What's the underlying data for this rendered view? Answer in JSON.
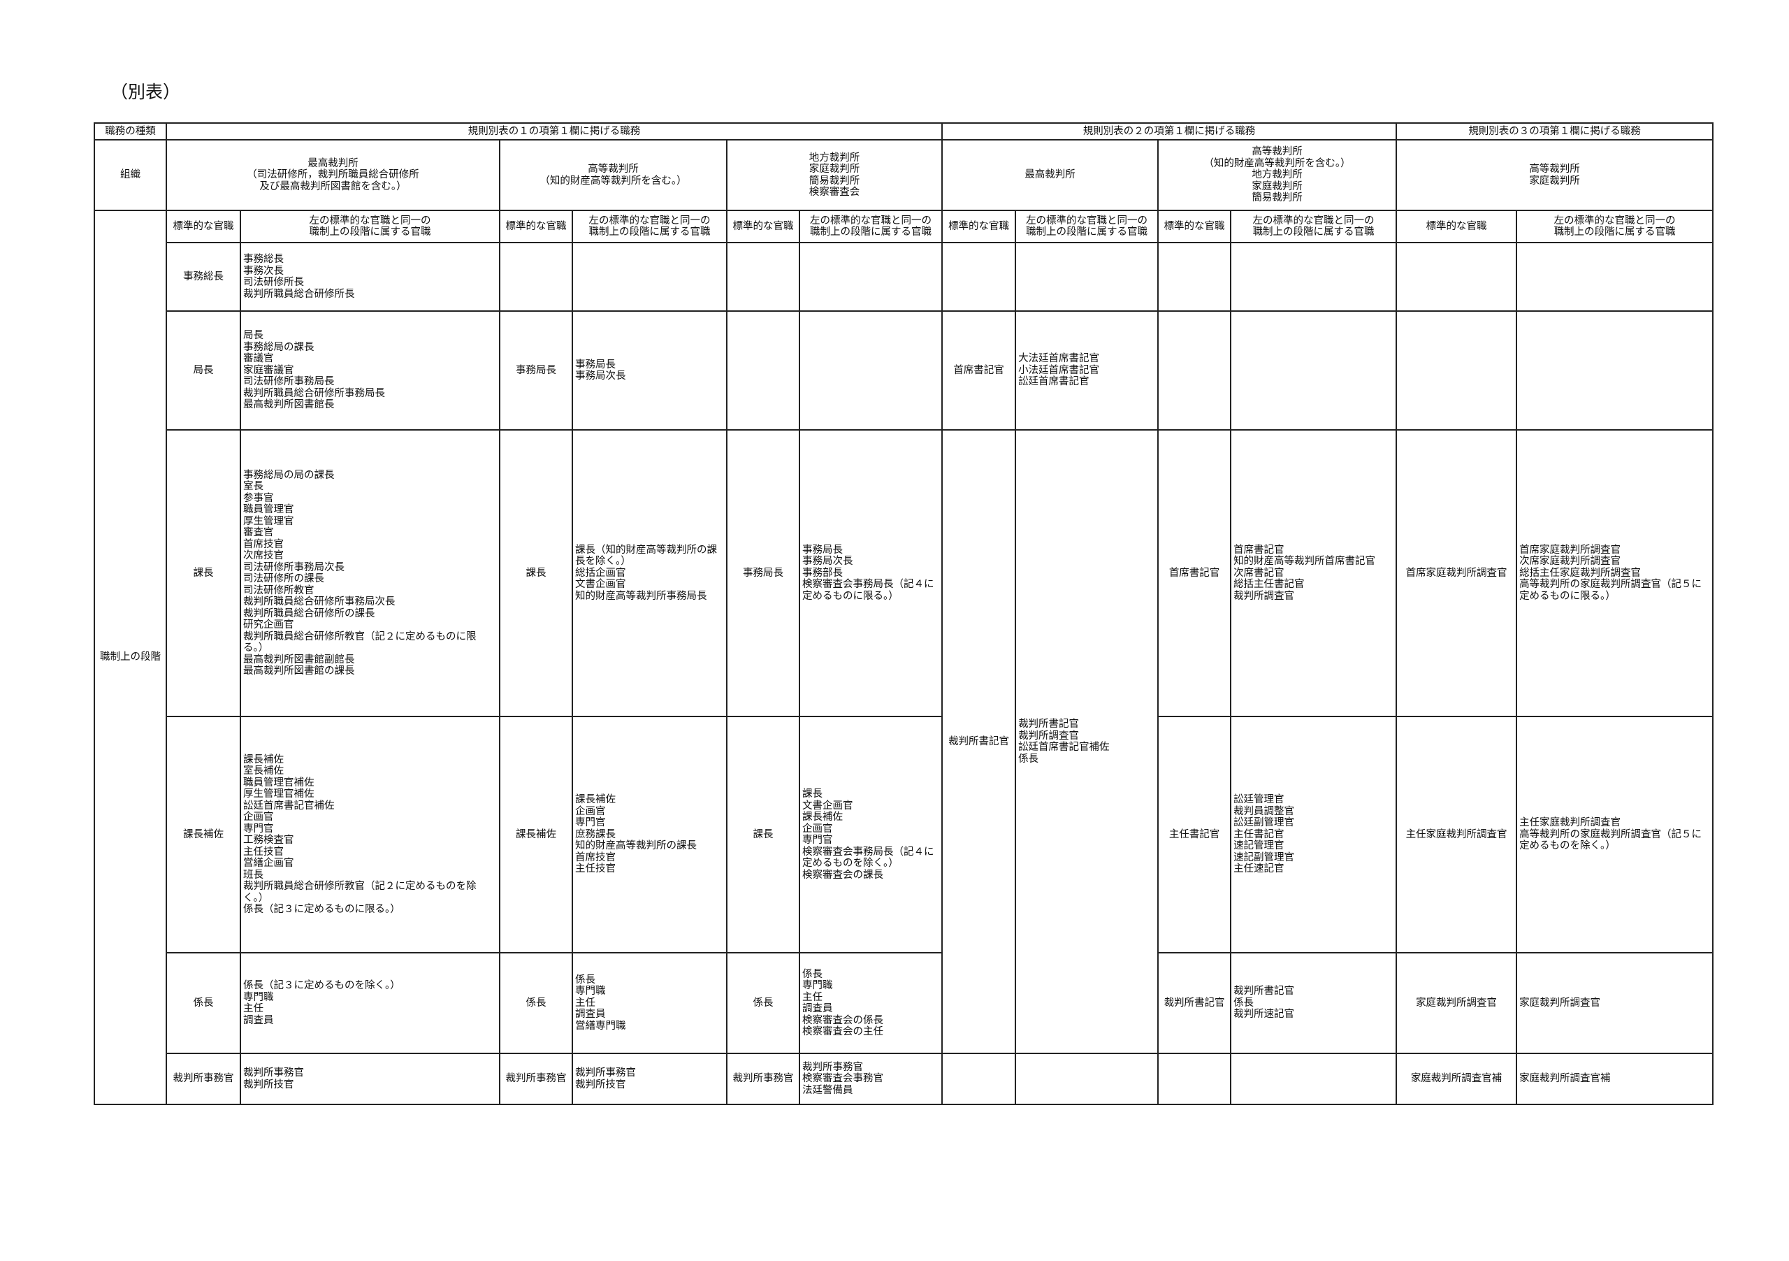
{
  "title": "（別表）",
  "header": {
    "kind_label": "職務の種類",
    "group1": "規則別表の１の項第１欄に掲げる職務",
    "group2": "規則別表の２の項第１欄に掲げる職務",
    "group3": "規則別表の３の項第１欄に掲げる職務",
    "org_label": "組織",
    "level_label": "職制上の段階",
    "standard": "標準的な官職",
    "same_level": "左の標準的な官職と同一の\n職制上の段階に属する官職"
  },
  "orgs": [
    "最高裁判所\n（司法研修所，裁判所職員総合研修所\n及び最高裁判所図書館を含む。）",
    "高等裁判所\n（知的財産高等裁判所を含む。）",
    "地方裁判所\n家庭裁判所\n簡易裁判所\n検察審査会",
    "最高裁判所",
    "高等裁判所\n（知的財産高等裁判所を含む。）\n地方裁判所\n家庭裁判所\n簡易裁判所",
    "高等裁判所\n家庭裁判所"
  ],
  "rows": [
    {
      "cells": [
        {
          "std": "事務総長",
          "list": "事務総長\n事務次長\n司法研修所長\n裁判所職員総合研修所長"
        },
        {
          "std": "",
          "list": ""
        },
        {
          "std": "",
          "list": ""
        },
        {
          "std": "",
          "list": ""
        },
        {
          "std": "",
          "list": ""
        },
        {
          "std": "",
          "list": ""
        }
      ]
    },
    {
      "cells": [
        {
          "std": "局長",
          "list": "局長\n事務総局の課長\n審議官\n家庭審議官\n司法研修所事務局長\n裁判所職員総合研修所事務局長\n最高裁判所図書館長"
        },
        {
          "std": "事務局長",
          "list": "事務局長\n事務局次長"
        },
        {
          "std": "",
          "list": ""
        },
        {
          "std": "首席書記官",
          "list": "大法廷首席書記官\n小法廷首席書記官\n訟廷首席書記官"
        },
        {
          "std": "",
          "list": ""
        },
        {
          "std": "",
          "list": ""
        }
      ]
    },
    {
      "cells": [
        {
          "std": "課長",
          "list": "事務総局の局の課長\n室長\n参事官\n職員管理官\n厚生管理官\n審査官\n首席技官\n次席技官\n司法研修所事務局次長\n司法研修所の課長\n司法研修所教官\n裁判所職員総合研修所事務局次長\n裁判所職員総合研修所の課長\n研究企画官\n裁判所職員総合研修所教官（記２に定めるものに限る。）\n最高裁判所図書館副館長\n最高裁判所図書館の課長"
        },
        {
          "std": "課長",
          "list": "課長（知的財産高等裁判所の課長を除く。）\n総括企画官\n文書企画官\n知的財産高等裁判所事務局長"
        },
        {
          "std": "事務局長",
          "list": "事務局長\n事務局次長\n事務部長\n検察審査会事務局長（記４に定めるものに限る。）"
        },
        {
          "std": "裁判所書記官",
          "list": "裁判所書記官\n裁判所調査官\n訟廷首席書記官補佐\n係長"
        },
        {
          "std": "首席書記官",
          "list": "首席書記官\n知的財産高等裁判所首席書記官\n次席書記官\n総括主任書記官\n裁判所調査官"
        },
        {
          "std": "首席家庭裁判所調査官",
          "list": "首席家庭裁判所調査官\n次席家庭裁判所調査官\n総括主任家庭裁判所調査官\n高等裁判所の家庭裁判所調査官（記５に定めるものに限る。）"
        }
      ]
    },
    {
      "cells": [
        {
          "std": "課長補佐",
          "list": "課長補佐\n室長補佐\n職員管理官補佐\n厚生管理官補佐\n訟廷首席書記官補佐\n企画官\n専門官\n工務検査官\n主任技官\n営繕企画官\n班長\n裁判所職員総合研修所教官（記２に定めるものを除く。）\n係長（記３に定めるものに限る。）"
        },
        {
          "std": "課長補佐",
          "list": "課長補佐\n企画官\n専門官\n庶務課長\n知的財産高等裁判所の課長\n首席技官\n主任技官"
        },
        {
          "std": "課長",
          "list": "課長\n文書企画官\n課長補佐\n企画官\n専門官\n検察審査会事務局長（記４に定めるものを除く。）\n検察審査会の課長"
        },
        {
          "std": "",
          "list": ""
        },
        {
          "std": "主任書記官",
          "list": "訟廷管理官\n裁判員調整官\n訟廷副管理官\n主任書記官\n速記管理官\n速記副管理官\n主任速記官"
        },
        {
          "std": "主任家庭裁判所調査官",
          "list": "主任家庭裁判所調査官\n高等裁判所の家庭裁判所調査官（記５に定めるものを除く。）"
        }
      ]
    },
    {
      "cells": [
        {
          "std": "係長",
          "list": "係長（記３に定めるものを除く。）\n専門職\n主任\n調査員"
        },
        {
          "std": "係長",
          "list": "係長\n専門職\n主任\n調査員\n営繕専門職"
        },
        {
          "std": "係長",
          "list": "係長\n専門職\n主任\n調査員\n検察審査会の係長\n検察審査会の主任"
        },
        {
          "std": "",
          "list": ""
        },
        {
          "std": "裁判所書記官",
          "list": "裁判所書記官\n係長\n裁判所速記官"
        },
        {
          "std": "家庭裁判所調査官",
          "list": "家庭裁判所調査官"
        }
      ]
    },
    {
      "cells": [
        {
          "std": "裁判所事務官",
          "list": "裁判所事務官\n裁判所技官"
        },
        {
          "std": "裁判所事務官",
          "list": "裁判所事務官\n裁判所技官"
        },
        {
          "std": "裁判所事務官",
          "list": "裁判所事務官\n検察審査会事務官\n法廷警備員"
        },
        {
          "std": "",
          "list": ""
        },
        {
          "std": "",
          "list": ""
        },
        {
          "std": "家庭裁判所調査官補",
          "list": "家庭裁判所調査官補"
        }
      ]
    }
  ]
}
